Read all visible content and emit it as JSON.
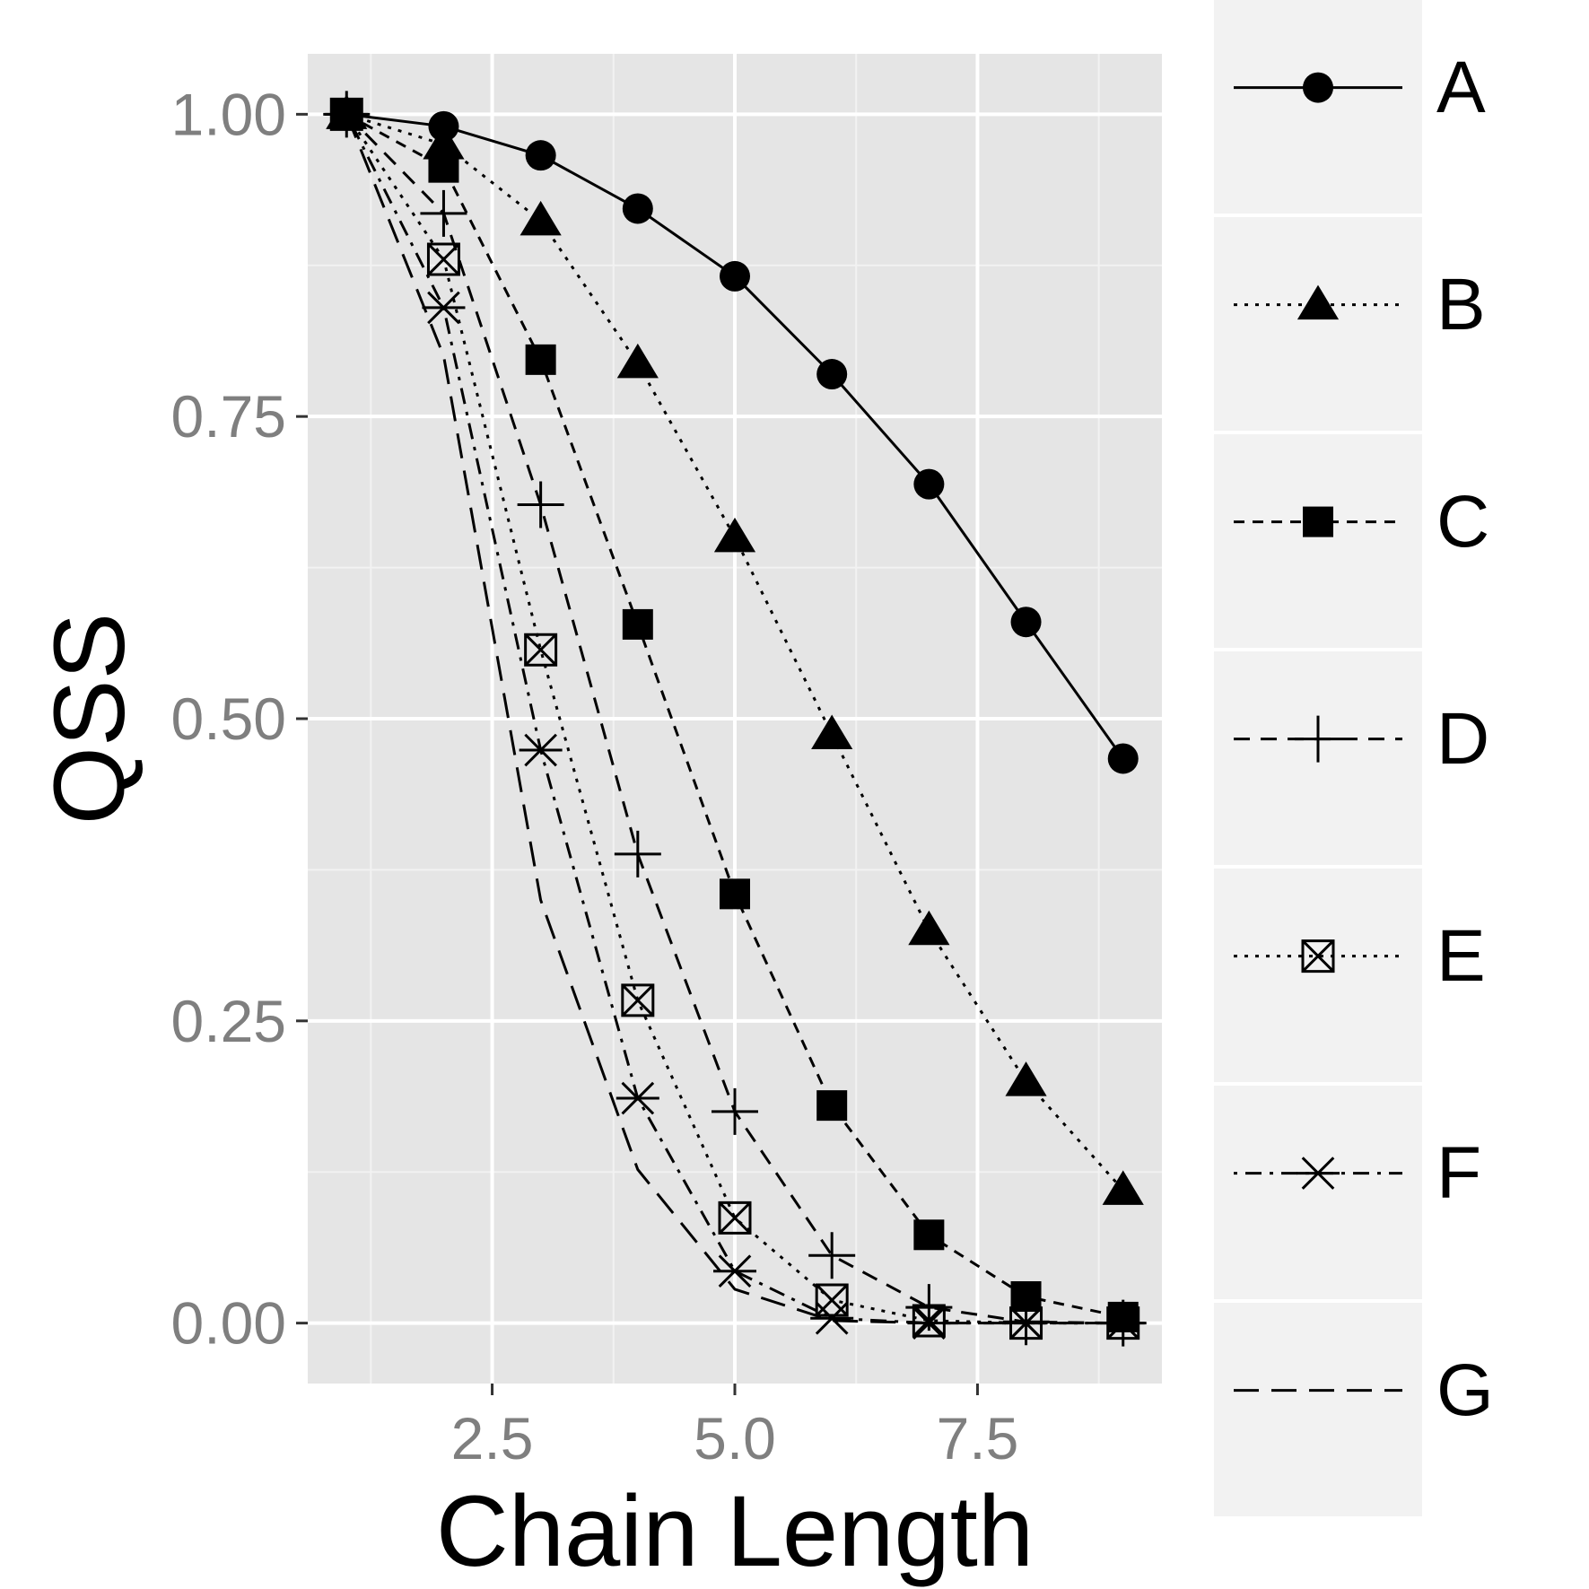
{
  "colors": {
    "panel": "#e5e5e5",
    "grid_major": "#ffffff",
    "grid_minor": "#f2f2f2",
    "legend_key_bg": "#f2f2f2",
    "ink": "#000000",
    "tick_text": "#7f7f7f"
  },
  "chart_data": {
    "type": "line",
    "title": "",
    "xlabel": "Chain Length",
    "ylabel": "QSS",
    "xlim": [
      0.6,
      9.4
    ],
    "ylim": [
      -0.05,
      1.05
    ],
    "x_ticks": [
      {
        "value": 2.5,
        "label": "2.5"
      },
      {
        "value": 5.0,
        "label": "5.0"
      },
      {
        "value": 7.5,
        "label": "7.5"
      }
    ],
    "y_ticks": [
      {
        "value": 0.0,
        "label": "0.00"
      },
      {
        "value": 0.25,
        "label": "0.25"
      },
      {
        "value": 0.5,
        "label": "0.50"
      },
      {
        "value": 0.75,
        "label": "0.75"
      },
      {
        "value": 1.0,
        "label": "1.00"
      }
    ],
    "grid": true,
    "legend_position": "right",
    "x": [
      1,
      2,
      3,
      4,
      5,
      6,
      7,
      8,
      9
    ],
    "series": [
      {
        "name": "A",
        "shape": "circle",
        "dash": "solid",
        "values": [
          1.0,
          0.99,
          0.966,
          0.922,
          0.866,
          0.785,
          0.694,
          0.58,
          0.467
        ]
      },
      {
        "name": "B",
        "shape": "triangle",
        "dash": "dotted",
        "values": [
          1.0,
          0.975,
          0.912,
          0.794,
          0.65,
          0.487,
          0.325,
          0.2,
          0.11
        ]
      },
      {
        "name": "C",
        "shape": "square",
        "dash": "dashed",
        "values": [
          1.0,
          0.956,
          0.797,
          0.578,
          0.355,
          0.18,
          0.073,
          0.022,
          0.005
        ]
      },
      {
        "name": "D",
        "shape": "plus",
        "dash": "longdash",
        "values": [
          1.0,
          0.918,
          0.677,
          0.388,
          0.175,
          0.056,
          0.013,
          0.001,
          0.0
        ]
      },
      {
        "name": "E",
        "shape": "boxcross",
        "dash": "dotted",
        "values": [
          1.0,
          0.88,
          0.557,
          0.267,
          0.087,
          0.019,
          0.002,
          0.0,
          0.0
        ]
      },
      {
        "name": "F",
        "shape": "asterisk",
        "dash": "dotdash",
        "values": [
          1.0,
          0.84,
          0.474,
          0.186,
          0.043,
          0.004,
          0.0,
          0.0,
          0.0
        ]
      },
      {
        "name": "G",
        "shape": "none",
        "dash": "longdash2",
        "values": [
          1.0,
          0.8,
          0.35,
          0.127,
          0.028,
          0.002,
          0.0,
          0.0,
          0.0
        ]
      }
    ]
  }
}
